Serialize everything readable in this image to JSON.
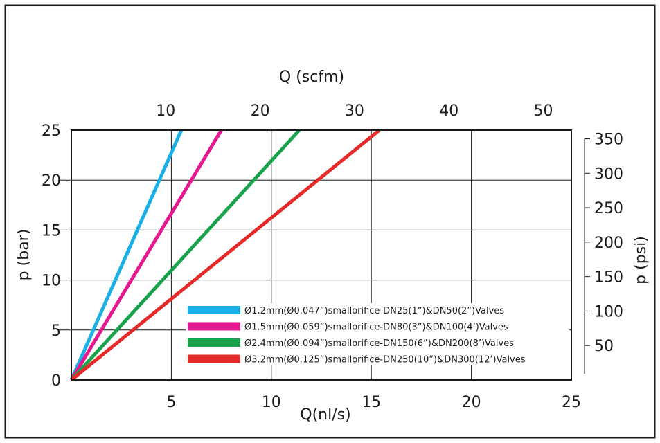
{
  "chart_data": {
    "type": "line",
    "x_bottom": {
      "label": "Q(nl/s)",
      "range": [
        0,
        25
      ],
      "ticks": [
        "5",
        "10",
        "15",
        "20",
        "25"
      ],
      "tick_values": [
        5,
        10,
        15,
        20,
        25
      ]
    },
    "x_top": {
      "label": "Q (scfm)",
      "range": [
        0,
        52.97
      ],
      "ticks": [
        "10",
        "20",
        "30",
        "40",
        "50"
      ],
      "tick_values": [
        10,
        20,
        30,
        40,
        50
      ]
    },
    "y_left": {
      "label": "p (bar)",
      "range": [
        0,
        25
      ],
      "ticks": [
        "0",
        "5",
        "10",
        "15",
        "20",
        "25"
      ],
      "tick_values": [
        0,
        5,
        10,
        15,
        20,
        25
      ]
    },
    "y_right": {
      "label": "p (psi)",
      "range": [
        0,
        362.6
      ],
      "ticks": [
        "50",
        "100",
        "150",
        "200",
        "250",
        "300",
        "350"
      ],
      "tick_values": [
        50,
        100,
        150,
        200,
        250,
        300,
        350
      ]
    },
    "grid": true,
    "legend_position": "bottom-right",
    "series": [
      {
        "name": "Ø1.2mm(Ø0.047”)smallorifice-DN25(1”)&DN50(2”)Valves",
        "color": "#1ab0e6",
        "x": [
          0,
          5.5
        ],
        "y": [
          0,
          25
        ]
      },
      {
        "name": "Ø1.5mm(Ø0.059”)smallorifice-DN80(3”)&DN100(4’)Valves",
        "color": "#e6188f",
        "x": [
          0,
          7.5
        ],
        "y": [
          0,
          25
        ]
      },
      {
        "name": "Ø2.4mm(Ø0.094”)smallorifice-DN150(6”)&DN200(8’)Valves",
        "color": "#18a24a",
        "x": [
          0,
          11.4
        ],
        "y": [
          0,
          25
        ]
      },
      {
        "name": "Ø3.2mm(Ø0.125”)smallorifice-DN250(10”)&DN300(12’)Valves",
        "color": "#e62a2a",
        "x": [
          0,
          15.4
        ],
        "y": [
          0,
          25
        ]
      }
    ]
  }
}
